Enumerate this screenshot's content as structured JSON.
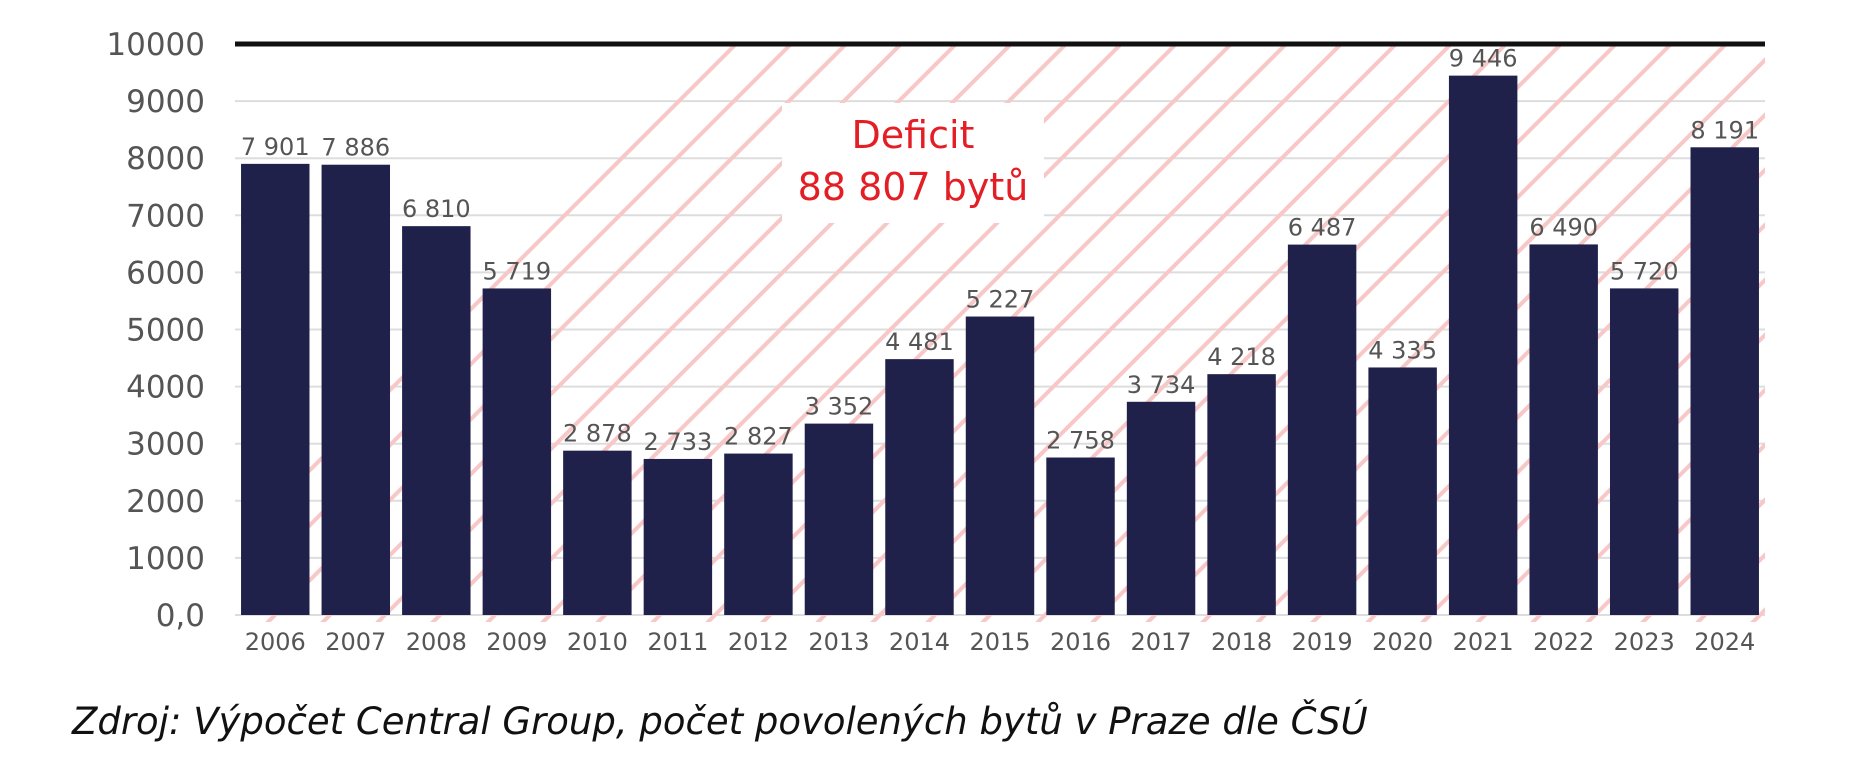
{
  "chart_data": {
    "type": "bar",
    "categories": [
      "2006",
      "2007",
      "2008",
      "2009",
      "2010",
      "2011",
      "2012",
      "2013",
      "2014",
      "2015",
      "2016",
      "2017",
      "2018",
      "2019",
      "2020",
      "2021",
      "2022",
      "2023",
      "2024"
    ],
    "values": [
      7901,
      7886,
      6810,
      5719,
      2878,
      2733,
      2827,
      3352,
      4481,
      5227,
      2758,
      3734,
      4218,
      6487,
      4335,
      9446,
      6490,
      5720,
      8191
    ],
    "value_labels": [
      "7 901",
      "7 886",
      "6 810",
      "5 719",
      "2 878",
      "2 733",
      "2 827",
      "3 352",
      "4 481",
      "5 227",
      "2 758",
      "3 734",
      "4 218",
      "6 487",
      "4 335",
      "9 446",
      "6 490",
      "5 720",
      "8 191"
    ],
    "yticks": [
      {
        "value": 0,
        "label": "0,0"
      },
      {
        "value": 1000,
        "label": "1000"
      },
      {
        "value": 2000,
        "label": "2000"
      },
      {
        "value": 3000,
        "label": "3000"
      },
      {
        "value": 4000,
        "label": "4000"
      },
      {
        "value": 5000,
        "label": "5000"
      },
      {
        "value": 6000,
        "label": "6000"
      },
      {
        "value": 7000,
        "label": "7000"
      },
      {
        "value": 8000,
        "label": "8000"
      },
      {
        "value": 9000,
        "label": "9000"
      },
      {
        "value": 10000,
        "label": "10000"
      }
    ],
    "ylim": [
      0,
      10000
    ],
    "target_line": 10000,
    "grid": true,
    "annotation": {
      "line1": "Deficit",
      "line2": "88 807 bytů"
    },
    "colors": {
      "bar": "#20214a",
      "target_line": "#111111",
      "hatch": "#f8c8c8",
      "annotation": "#e31e24",
      "grid": "#dddddd",
      "tick": "#555555"
    }
  },
  "source": "Zdroj: Výpočet Central Group, počet povolených bytů v Praze dle ČSÚ"
}
